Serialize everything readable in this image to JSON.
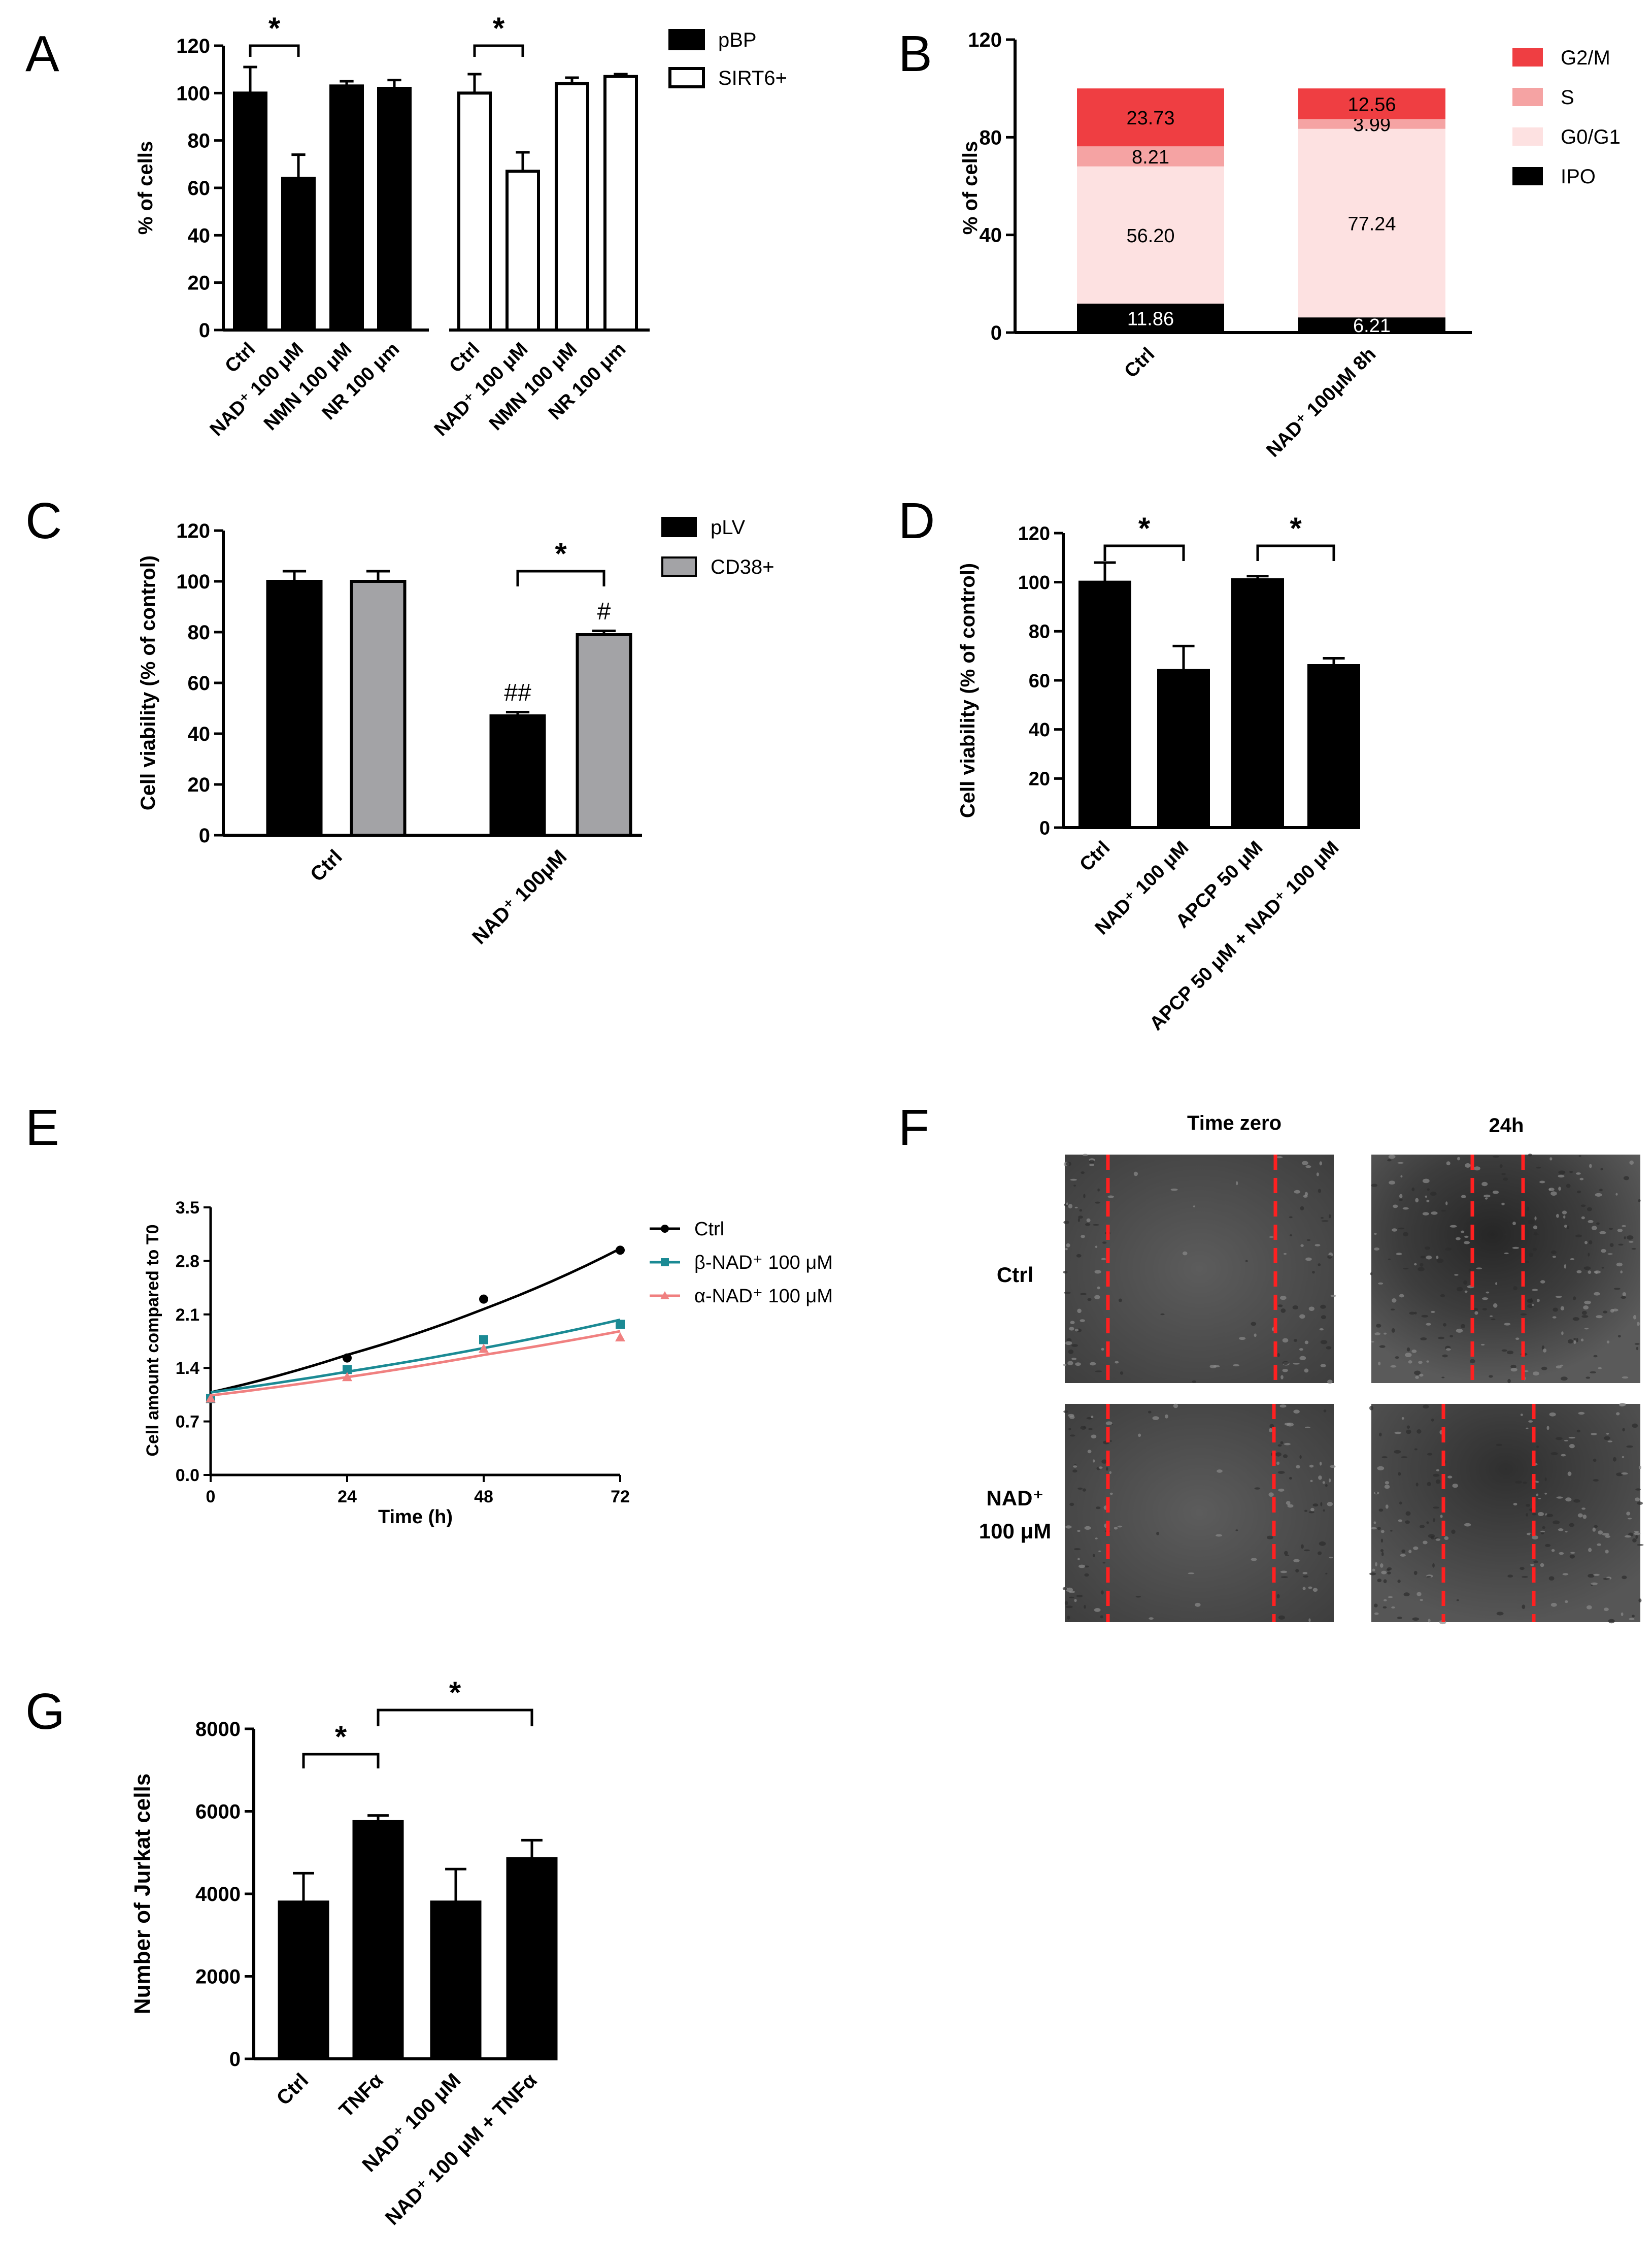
{
  "chart_data": [
    {
      "panel": "A",
      "type": "bar",
      "ylabel": "% of cells",
      "ylim": [
        0,
        120
      ],
      "yticks": [
        0,
        20,
        40,
        60,
        80,
        100,
        120
      ],
      "legend": [
        {
          "name": "pBP",
          "fill": "#000000"
        },
        {
          "name": "SIRT6+",
          "fill": "#ffffff"
        }
      ],
      "groups": [
        {
          "series": "pBP",
          "categories": [
            "Ctrl",
            "NAD⁺ 100 μM",
            "NMN 100 μM",
            "NR 100 μm"
          ],
          "values": [
            100,
            64,
            103,
            102
          ],
          "errors": [
            11,
            10,
            2,
            3.5
          ]
        },
        {
          "series": "SIRT6+",
          "categories": [
            "Ctrl",
            "NAD⁺ 100 μM",
            "NMN 100 μM",
            "NR 100 μm"
          ],
          "values": [
            100,
            67,
            104,
            107
          ],
          "errors": [
            8,
            8,
            2.5,
            1
          ]
        }
      ],
      "significance": [
        "*",
        "*"
      ]
    },
    {
      "panel": "B",
      "type": "bar",
      "stacked": true,
      "ylabel": "% of cells",
      "ylim": [
        0,
        120
      ],
      "yticks": [
        0,
        40,
        80,
        120
      ],
      "categories": [
        "Ctrl",
        "NAD⁺ 100μM 8h"
      ],
      "series": [
        {
          "name": "IPO",
          "color": "#000000",
          "values": [
            11.86,
            6.21
          ],
          "labels": [
            "11.86",
            "6.21"
          ]
        },
        {
          "name": "G0/G1",
          "color": "#fde1e1",
          "values": [
            56.2,
            77.24
          ],
          "labels": [
            "56.20",
            "77.24"
          ]
        },
        {
          "name": "S",
          "color": "#f5a3a3",
          "values": [
            8.21,
            3.99
          ],
          "labels": [
            "8.21",
            "3.99"
          ]
        },
        {
          "name": "G2/M",
          "color": "#ef3e42",
          "values": [
            23.73,
            12.56
          ],
          "labels": [
            "23.73",
            "12.56"
          ]
        }
      ],
      "legend_order": [
        "G2/M",
        "S",
        "G0/G1",
        "IPO"
      ]
    },
    {
      "panel": "C",
      "type": "bar",
      "ylabel": "Cell viability (% of control)",
      "ylim": [
        0,
        120
      ],
      "yticks": [
        0,
        20,
        40,
        60,
        80,
        100,
        120
      ],
      "categories": [
        "Ctrl",
        "NAD⁺ 100μM"
      ],
      "series": [
        {
          "name": "pLV",
          "color": "#000000",
          "values": [
            100,
            47
          ],
          "errors": [
            4,
            1.5
          ]
        },
        {
          "name": "CD38+",
          "color": "#a3a3a6",
          "values": [
            100,
            79
          ],
          "errors": [
            4,
            1.5
          ]
        }
      ],
      "annotations": [
        "##",
        "#"
      ],
      "significance": [
        "*"
      ]
    },
    {
      "panel": "D",
      "type": "bar",
      "ylabel": "Cell viability (% of control)",
      "ylim": [
        0,
        120
      ],
      "yticks": [
        0,
        20,
        40,
        60,
        80,
        100,
        120
      ],
      "categories": [
        "Ctrl",
        "NAD⁺ 100 μM",
        "APCP 50 μM",
        "APCP 50 μM + NAD⁺ 100 μM"
      ],
      "values": [
        100,
        64,
        101,
        66
      ],
      "errors": [
        8,
        10,
        1.5,
        3
      ],
      "significance": [
        "*",
        "*"
      ]
    },
    {
      "panel": "E",
      "type": "line",
      "xlabel": "Time (h)",
      "ylabel": "Cell amount compared to T0",
      "xlim": [
        0,
        72
      ],
      "ylim": [
        0,
        3.5
      ],
      "xticks": [
        0,
        24,
        48,
        72
      ],
      "yticks": [
        "0.0",
        "0.7",
        "1.4",
        "2.1",
        "2.8",
        "3.5"
      ],
      "x": [
        0,
        24,
        48,
        72
      ],
      "series": [
        {
          "name": "Ctrl",
          "color": "#000000",
          "marker": "circle",
          "values": [
            1.0,
            1.53,
            2.3,
            2.94
          ],
          "fit": [
            1.08,
            1.57,
            2.17,
            2.96
          ]
        },
        {
          "name": "β-NAD⁺ 100 μM",
          "color": "#1b8a94",
          "marker": "square",
          "values": [
            1.0,
            1.38,
            1.77,
            1.97
          ],
          "fit": [
            1.08,
            1.35,
            1.66,
            2.03
          ]
        },
        {
          "name": "α-NAD⁺ 100 μM",
          "color": "#f08080",
          "marker": "triangle",
          "values": [
            1.0,
            1.28,
            1.65,
            1.8
          ],
          "fit": [
            1.04,
            1.28,
            1.57,
            1.88
          ]
        }
      ]
    },
    {
      "panel": "G",
      "type": "bar",
      "ylabel": "Number of Jurkat cells",
      "ylim": [
        0,
        8000
      ],
      "yticks": [
        0,
        2000,
        4000,
        6000,
        8000
      ],
      "categories": [
        "Ctrl",
        "TNFα",
        "NAD⁺ 100 μM",
        "NAD⁺ 100 μM + TNFα"
      ],
      "values": [
        3800,
        5750,
        3800,
        4850
      ],
      "errors": [
        700,
        150,
        800,
        450
      ],
      "significance": [
        "*",
        "*"
      ]
    }
  ],
  "panel_letters": {
    "A": "A",
    "B": "B",
    "C": "C",
    "D": "D",
    "E": "E",
    "F": "F",
    "G": "G"
  },
  "panel_f": {
    "col_titles": [
      "Time zero",
      "24h"
    ],
    "row_labels": [
      "Ctrl",
      "NAD⁺",
      "100 μM"
    ]
  }
}
